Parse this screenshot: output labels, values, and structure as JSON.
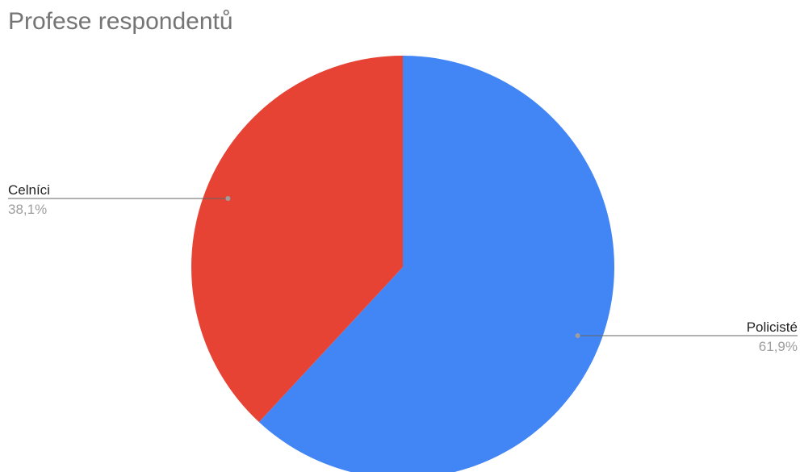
{
  "chart_data": {
    "type": "pie",
    "title": "Profese respondentů",
    "slices": [
      {
        "label": "Policisté",
        "value": 61.9,
        "value_label": "61,9%",
        "color": "#4285f4"
      },
      {
        "label": "Celníci",
        "value": 38.1,
        "value_label": "38,1%",
        "color": "#e64335"
      }
    ],
    "legend": "none",
    "label_style": "leader-lines"
  }
}
